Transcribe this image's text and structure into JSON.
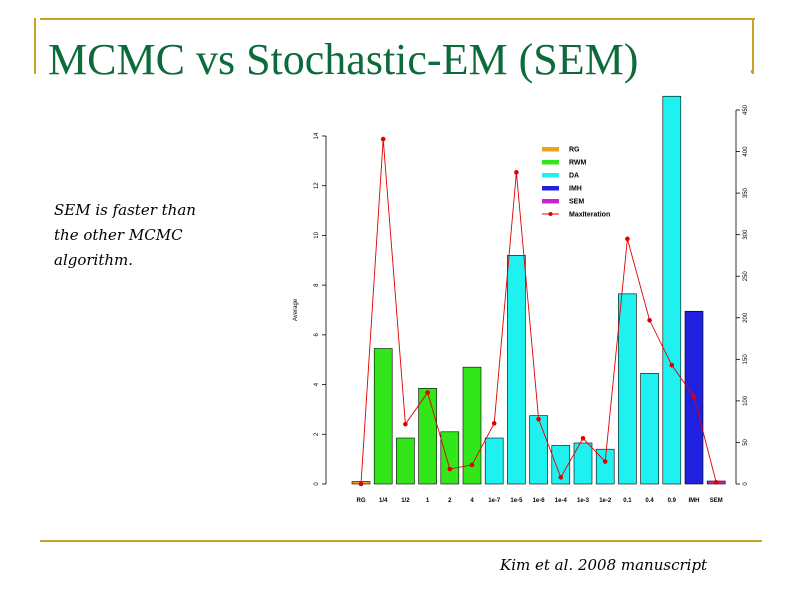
{
  "slide": {
    "title": "MCMC vs Stochastic-EM (SEM)",
    "note": "SEM is faster than the other MCMC algorithm.",
    "citation": "Kim et al. 2008 manuscript",
    "accent": "#c9a227",
    "title_color": "#0b6b3a"
  },
  "chart_data": {
    "type": "bar",
    "ylabel": "Average",
    "categories": [
      "RG",
      "1/4",
      "1/2",
      "1",
      "2",
      "4",
      "1e-7",
      "1e-5",
      "1e-6",
      "1e-4",
      "1e-3",
      "1e-2",
      "0.1",
      "0.4",
      "0.9",
      "IMH",
      "SEM"
    ],
    "series": [
      {
        "name": "Average",
        "values": [
          0.1,
          5.45,
          1.85,
          3.85,
          2.1,
          4.7,
          1.85,
          9.2,
          2.75,
          1.55,
          1.65,
          1.4,
          7.65,
          4.45,
          15.6,
          6.95,
          0.12
        ],
        "groups": [
          "RG",
          "RWM",
          "RWM",
          "RWM",
          "RWM",
          "RWM",
          "DA",
          "DA",
          "DA",
          "DA",
          "DA",
          "DA",
          "DA",
          "DA",
          "DA",
          "IMH",
          "SEM"
        ]
      },
      {
        "name": "MaxIteration",
        "values": [
          0,
          415,
          72,
          110,
          18,
          23,
          73,
          375,
          78,
          8,
          55,
          27,
          295,
          197,
          143,
          105,
          2
        ]
      }
    ],
    "ylim": [
      0,
      14
    ],
    "yticks": [
      0,
      2,
      4,
      6,
      8,
      10,
      12,
      14
    ],
    "y2lim": [
      0,
      450
    ],
    "y2ticks": [
      0,
      50,
      100,
      150,
      200,
      250,
      300,
      350,
      400,
      450
    ],
    "legend": {
      "position": "top-right",
      "items": [
        {
          "label": "RG",
          "color": "#f0a020",
          "kind": "bar"
        },
        {
          "label": "RWM",
          "color": "#33e61a",
          "kind": "bar"
        },
        {
          "label": "DA",
          "color": "#1ff0f0",
          "kind": "bar"
        },
        {
          "label": "IMH",
          "color": "#2020e0",
          "kind": "bar"
        },
        {
          "label": "SEM",
          "color": "#cc22cc",
          "kind": "bar"
        },
        {
          "label": "MaxIteration",
          "color": "#e00000",
          "kind": "line"
        }
      ]
    },
    "colors": {
      "RG": "#f0a020",
      "RWM": "#33e61a",
      "DA": "#1ff0f0",
      "IMH": "#2020e0",
      "SEM": "#cc22cc",
      "line": "#e00000"
    }
  }
}
